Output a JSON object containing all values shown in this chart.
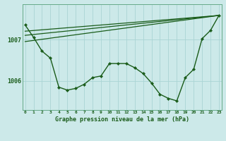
{
  "background_color": "#cce9e9",
  "grid_color": "#aad4d4",
  "line_color": "#1a5c1a",
  "title": "Graphe pression niveau de la mer (hPa)",
  "xlabel_ticks": [
    0,
    1,
    2,
    3,
    4,
    5,
    6,
    7,
    8,
    9,
    10,
    11,
    12,
    13,
    14,
    15,
    16,
    17,
    18,
    19,
    20,
    21,
    22,
    23
  ],
  "yticks": [
    1006,
    1007
  ],
  "ylim": [
    1005.3,
    1007.85
  ],
  "xlim": [
    -0.3,
    23.3
  ],
  "main_series": {
    "x": [
      0,
      1,
      2,
      3,
      4,
      5,
      6,
      7,
      8,
      9,
      10,
      11,
      12,
      13,
      14,
      15,
      16,
      17,
      18,
      19,
      20,
      21,
      22,
      23
    ],
    "y": [
      1007.35,
      1007.05,
      1006.72,
      1006.55,
      1005.85,
      1005.78,
      1005.82,
      1005.92,
      1006.08,
      1006.12,
      1006.42,
      1006.42,
      1006.42,
      1006.32,
      1006.18,
      1005.95,
      1005.68,
      1005.58,
      1005.52,
      1006.08,
      1006.28,
      1007.02,
      1007.22,
      1007.58
    ]
  },
  "fan_lines": [
    {
      "x": [
        0,
        23
      ],
      "y": [
        1007.2,
        1007.58
      ]
    },
    {
      "x": [
        0,
        23
      ],
      "y": [
        1007.1,
        1007.58
      ]
    },
    {
      "x": [
        0,
        23
      ],
      "y": [
        1006.95,
        1007.58
      ]
    }
  ]
}
